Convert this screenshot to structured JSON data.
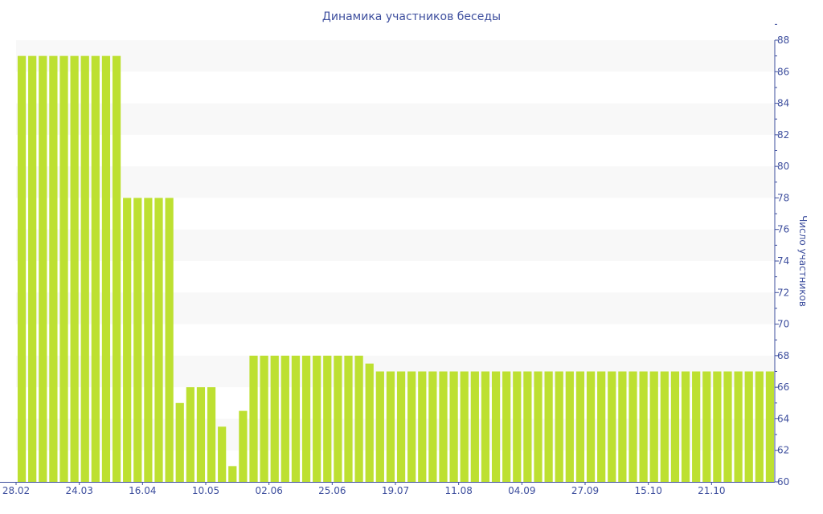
{
  "chart_data": {
    "type": "bar",
    "title": "Динамика участников беседы",
    "xlabel": "",
    "ylabel": "Число участников",
    "ylim": [
      60,
      88
    ],
    "y_ticks": [
      60,
      62,
      64,
      66,
      68,
      70,
      72,
      74,
      76,
      78,
      80,
      82,
      84,
      86,
      88
    ],
    "y_axis_position": "right",
    "grid": "alternating horizontal bands",
    "x_tick_labels": [
      {
        "index": 0,
        "label": "28.02"
      },
      {
        "index": 6,
        "label": "24.03"
      },
      {
        "index": 12,
        "label": "16.04"
      },
      {
        "index": 18,
        "label": "10.05"
      },
      {
        "index": 24,
        "label": "02.06"
      },
      {
        "index": 30,
        "label": "25.06"
      },
      {
        "index": 36,
        "label": "19.07"
      },
      {
        "index": 42,
        "label": "11.08"
      },
      {
        "index": 48,
        "label": "04.09"
      },
      {
        "index": 54,
        "label": "27.09"
      },
      {
        "index": 60,
        "label": "15.10"
      },
      {
        "index": 66,
        "label": "21.10"
      }
    ],
    "values": [
      87,
      87,
      87,
      87,
      87,
      87,
      87,
      87,
      87,
      87,
      78,
      78,
      78,
      78,
      78,
      65,
      66,
      66,
      66,
      63.5,
      61,
      64.5,
      68,
      68,
      68,
      68,
      68,
      68,
      68,
      68,
      68,
      68,
      68,
      67.5,
      67,
      67,
      67,
      67,
      67,
      67,
      67,
      67,
      67,
      67,
      67,
      67,
      67,
      67,
      67,
      67,
      67,
      67,
      67,
      67,
      67,
      67,
      67,
      67,
      67,
      67,
      67,
      67,
      67,
      67,
      67,
      67,
      67,
      67,
      67,
      67,
      67,
      67
    ],
    "colors": {
      "bar": "#bde031",
      "axis": "#3e4f9e",
      "band": "#f8f8f8"
    }
  }
}
